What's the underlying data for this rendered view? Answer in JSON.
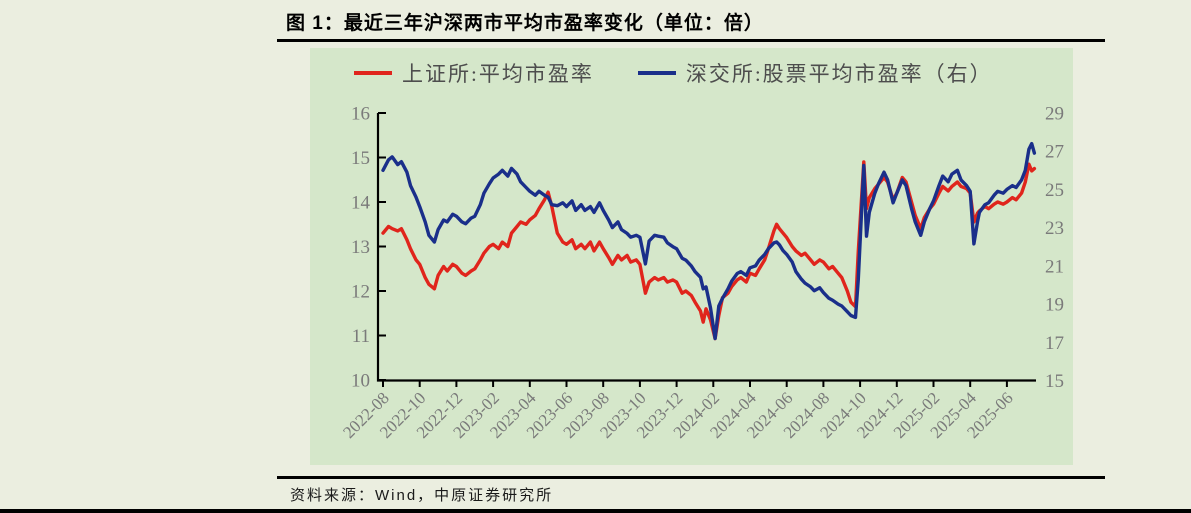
{
  "header": {
    "title": "图 1：最近三年沪深两市平均市盈率变化（单位：倍）"
  },
  "footer": {
    "source": "资料来源：Wind，中原证券研究所"
  },
  "colors": {
    "page_bg": "#ebeee0",
    "panel_bg": "#d5e7ca",
    "sse_red": "#e0251c",
    "szse_blue": "#1a2f8a",
    "axis": "#000000",
    "tick_text": "#7a7a7a",
    "legend_text": "#4d4d4d"
  },
  "chart_data": {
    "type": "line",
    "title": "最近三年沪深两市平均市盈率变化（单位：倍）",
    "x_unit": "months since 2022-08",
    "x_tick_step_months": 2,
    "xlim_months": [
      0,
      35.5
    ],
    "x_tick_labels": [
      "2022-08",
      "2022-10",
      "2022-12",
      "2023-02",
      "2023-04",
      "2023-06",
      "2023-08",
      "2023-10",
      "2023-12",
      "2024-02",
      "2024-04",
      "2024-06",
      "2024-08",
      "2024-10",
      "2024-12",
      "2025-02",
      "2025-04",
      "2025-06"
    ],
    "left_axis": {
      "ticks": [
        16,
        15,
        14,
        13,
        12,
        11,
        10
      ],
      "range": [
        10,
        16
      ]
    },
    "right_axis": {
      "ticks": [
        29,
        27,
        25,
        23,
        21,
        19,
        17,
        15
      ],
      "range": [
        15,
        29
      ]
    },
    "grid": false,
    "legend_position": "top",
    "series": [
      {
        "name": "上证所:平均市盈率",
        "axis": "left",
        "color": "#e0251c",
        "points": [
          [
            0,
            13.3
          ],
          [
            0.3,
            13.45
          ],
          [
            0.5,
            13.4
          ],
          [
            0.8,
            13.35
          ],
          [
            1,
            13.4
          ],
          [
            1.3,
            13.15
          ],
          [
            1.5,
            12.95
          ],
          [
            1.8,
            12.7
          ],
          [
            2,
            12.6
          ],
          [
            2.3,
            12.3
          ],
          [
            2.5,
            12.15
          ],
          [
            2.8,
            12.05
          ],
          [
            3,
            12.35
          ],
          [
            3.3,
            12.55
          ],
          [
            3.5,
            12.45
          ],
          [
            3.8,
            12.6
          ],
          [
            4,
            12.55
          ],
          [
            4.3,
            12.4
          ],
          [
            4.5,
            12.35
          ],
          [
            4.8,
            12.45
          ],
          [
            5,
            12.5
          ],
          [
            5.3,
            12.7
          ],
          [
            5.5,
            12.85
          ],
          [
            5.8,
            13
          ],
          [
            6,
            13.05
          ],
          [
            6.3,
            12.95
          ],
          [
            6.5,
            13.1
          ],
          [
            6.8,
            13
          ],
          [
            7,
            13.3
          ],
          [
            7.3,
            13.45
          ],
          [
            7.5,
            13.55
          ],
          [
            7.8,
            13.5
          ],
          [
            8,
            13.6
          ],
          [
            8.3,
            13.7
          ],
          [
            8.5,
            13.85
          ],
          [
            8.8,
            14.05
          ],
          [
            9,
            14.22
          ],
          [
            9.2,
            13.9
          ],
          [
            9.5,
            13.3
          ],
          [
            9.8,
            13.1
          ],
          [
            10,
            13.05
          ],
          [
            10.3,
            13.15
          ],
          [
            10.5,
            12.95
          ],
          [
            10.8,
            13.05
          ],
          [
            11,
            12.95
          ],
          [
            11.3,
            13.1
          ],
          [
            11.5,
            12.9
          ],
          [
            11.8,
            13.1
          ],
          [
            12,
            12.95
          ],
          [
            12.3,
            12.75
          ],
          [
            12.5,
            12.6
          ],
          [
            12.8,
            12.8
          ],
          [
            13,
            12.7
          ],
          [
            13.3,
            12.8
          ],
          [
            13.5,
            12.65
          ],
          [
            13.8,
            12.7
          ],
          [
            14,
            12.6
          ],
          [
            14.3,
            11.95
          ],
          [
            14.5,
            12.2
          ],
          [
            14.8,
            12.3
          ],
          [
            15,
            12.25
          ],
          [
            15.3,
            12.3
          ],
          [
            15.5,
            12.2
          ],
          [
            15.8,
            12.25
          ],
          [
            16,
            12.2
          ],
          [
            16.3,
            11.95
          ],
          [
            16.5,
            12
          ],
          [
            16.8,
            11.9
          ],
          [
            17,
            11.75
          ],
          [
            17.3,
            11.55
          ],
          [
            17.45,
            11.3
          ],
          [
            17.6,
            11.6
          ],
          [
            17.85,
            11.35
          ],
          [
            18.1,
            10.93
          ],
          [
            18.3,
            11.45
          ],
          [
            18.5,
            11.85
          ],
          [
            18.8,
            11.95
          ],
          [
            19,
            12.1
          ],
          [
            19.3,
            12.25
          ],
          [
            19.5,
            12.3
          ],
          [
            19.8,
            12.2
          ],
          [
            20,
            12.4
          ],
          [
            20.3,
            12.35
          ],
          [
            20.5,
            12.5
          ],
          [
            20.8,
            12.7
          ],
          [
            21,
            12.95
          ],
          [
            21.3,
            13.35
          ],
          [
            21.45,
            13.5
          ],
          [
            21.6,
            13.4
          ],
          [
            21.8,
            13.3
          ],
          [
            22,
            13.2
          ],
          [
            22.3,
            13
          ],
          [
            22.5,
            12.9
          ],
          [
            22.8,
            12.8
          ],
          [
            23,
            12.85
          ],
          [
            23.3,
            12.7
          ],
          [
            23.5,
            12.6
          ],
          [
            23.8,
            12.7
          ],
          [
            24,
            12.65
          ],
          [
            24.3,
            12.5
          ],
          [
            24.5,
            12.55
          ],
          [
            24.8,
            12.4
          ],
          [
            25,
            12.3
          ],
          [
            25.3,
            12
          ],
          [
            25.5,
            11.75
          ],
          [
            25.75,
            11.65
          ],
          [
            25.9,
            12.9
          ],
          [
            26.2,
            14.9
          ],
          [
            26.35,
            13.85
          ],
          [
            26.5,
            14.1
          ],
          [
            26.8,
            14.3
          ],
          [
            27,
            14.4
          ],
          [
            27.3,
            14.55
          ],
          [
            27.5,
            14.45
          ],
          [
            27.8,
            14.05
          ],
          [
            28,
            14.2
          ],
          [
            28.3,
            14.55
          ],
          [
            28.5,
            14.45
          ],
          [
            28.8,
            14
          ],
          [
            29,
            13.7
          ],
          [
            29.3,
            13.4
          ],
          [
            29.5,
            13.65
          ],
          [
            29.8,
            13.85
          ],
          [
            30,
            13.95
          ],
          [
            30.3,
            14.2
          ],
          [
            30.5,
            14.35
          ],
          [
            30.8,
            14.25
          ],
          [
            31,
            14.35
          ],
          [
            31.3,
            14.45
          ],
          [
            31.5,
            14.35
          ],
          [
            31.8,
            14.3
          ],
          [
            32,
            14.2
          ],
          [
            32.2,
            13.55
          ],
          [
            32.4,
            13.75
          ],
          [
            32.5,
            13.8
          ],
          [
            32.8,
            13.9
          ],
          [
            33,
            13.85
          ],
          [
            33.3,
            13.95
          ],
          [
            33.5,
            14
          ],
          [
            33.8,
            13.95
          ],
          [
            34,
            14
          ],
          [
            34.3,
            14.1
          ],
          [
            34.5,
            14.05
          ],
          [
            34.8,
            14.2
          ],
          [
            35,
            14.45
          ],
          [
            35.2,
            14.85
          ],
          [
            35.35,
            14.7
          ],
          [
            35.5,
            14.75
          ]
        ]
      },
      {
        "name": "深交所:股票平均市盈率（右）",
        "axis": "right",
        "color": "#1a2f8a",
        "points": [
          [
            0,
            26
          ],
          [
            0.3,
            26.55
          ],
          [
            0.5,
            26.7
          ],
          [
            0.8,
            26.3
          ],
          [
            1,
            26.45
          ],
          [
            1.3,
            25.9
          ],
          [
            1.5,
            25.2
          ],
          [
            1.8,
            24.6
          ],
          [
            2,
            24.1
          ],
          [
            2.3,
            23.3
          ],
          [
            2.5,
            22.6
          ],
          [
            2.8,
            22.25
          ],
          [
            3,
            22.9
          ],
          [
            3.3,
            23.4
          ],
          [
            3.5,
            23.3
          ],
          [
            3.8,
            23.7
          ],
          [
            4,
            23.6
          ],
          [
            4.3,
            23.3
          ],
          [
            4.5,
            23.2
          ],
          [
            4.8,
            23.5
          ],
          [
            5,
            23.6
          ],
          [
            5.3,
            24.2
          ],
          [
            5.5,
            24.8
          ],
          [
            5.8,
            25.3
          ],
          [
            6,
            25.6
          ],
          [
            6.3,
            25.8
          ],
          [
            6.5,
            26
          ],
          [
            6.8,
            25.7
          ],
          [
            7,
            26.1
          ],
          [
            7.3,
            25.8
          ],
          [
            7.5,
            25.4
          ],
          [
            7.8,
            25.1
          ],
          [
            8,
            24.9
          ],
          [
            8.3,
            24.7
          ],
          [
            8.5,
            24.9
          ],
          [
            8.8,
            24.7
          ],
          [
            9,
            24.6
          ],
          [
            9.2,
            24.2
          ],
          [
            9.5,
            24.15
          ],
          [
            9.8,
            24.3
          ],
          [
            10,
            24.1
          ],
          [
            10.3,
            24.4
          ],
          [
            10.5,
            23.9
          ],
          [
            10.8,
            24.2
          ],
          [
            11,
            23.9
          ],
          [
            11.3,
            24.1
          ],
          [
            11.5,
            23.8
          ],
          [
            11.8,
            24.3
          ],
          [
            12,
            23.9
          ],
          [
            12.3,
            23.4
          ],
          [
            12.5,
            23
          ],
          [
            12.8,
            23.3
          ],
          [
            13,
            22.9
          ],
          [
            13.3,
            22.7
          ],
          [
            13.5,
            22.5
          ],
          [
            13.8,
            22.6
          ],
          [
            14,
            22.5
          ],
          [
            14.3,
            21.1
          ],
          [
            14.5,
            22.3
          ],
          [
            14.8,
            22.6
          ],
          [
            15,
            22.55
          ],
          [
            15.3,
            22.5
          ],
          [
            15.5,
            22.2
          ],
          [
            15.8,
            22
          ],
          [
            16,
            21.9
          ],
          [
            16.3,
            21.4
          ],
          [
            16.5,
            21.3
          ],
          [
            16.8,
            21
          ],
          [
            17,
            20.7
          ],
          [
            17.3,
            20.4
          ],
          [
            17.45,
            19.8
          ],
          [
            17.6,
            19.9
          ],
          [
            17.85,
            18.8
          ],
          [
            18.1,
            17.2
          ],
          [
            18.3,
            18.9
          ],
          [
            18.5,
            19.3
          ],
          [
            18.8,
            19.8
          ],
          [
            19,
            20.2
          ],
          [
            19.3,
            20.6
          ],
          [
            19.5,
            20.7
          ],
          [
            19.8,
            20.5
          ],
          [
            20,
            20.9
          ],
          [
            20.3,
            21
          ],
          [
            20.5,
            21.3
          ],
          [
            20.8,
            21.6
          ],
          [
            21,
            21.9
          ],
          [
            21.3,
            22.2
          ],
          [
            21.45,
            22.25
          ],
          [
            21.6,
            22.1
          ],
          [
            21.8,
            21.8
          ],
          [
            22,
            21.6
          ],
          [
            22.3,
            21.2
          ],
          [
            22.5,
            20.7
          ],
          [
            22.8,
            20.3
          ],
          [
            23,
            20.1
          ],
          [
            23.3,
            19.9
          ],
          [
            23.5,
            19.7
          ],
          [
            23.8,
            19.85
          ],
          [
            24,
            19.6
          ],
          [
            24.3,
            19.3
          ],
          [
            24.5,
            19.2
          ],
          [
            24.8,
            19
          ],
          [
            25,
            18.9
          ],
          [
            25.3,
            18.6
          ],
          [
            25.5,
            18.4
          ],
          [
            25.75,
            18.3
          ],
          [
            25.9,
            20.3
          ],
          [
            26.2,
            26.25
          ],
          [
            26.35,
            22.55
          ],
          [
            26.5,
            23.8
          ],
          [
            26.8,
            24.8
          ],
          [
            27,
            25.3
          ],
          [
            27.3,
            25.9
          ],
          [
            27.5,
            25.5
          ],
          [
            27.8,
            24.3
          ],
          [
            28,
            24.8
          ],
          [
            28.3,
            25.5
          ],
          [
            28.5,
            25.2
          ],
          [
            28.8,
            24
          ],
          [
            29,
            23.3
          ],
          [
            29.3,
            22.6
          ],
          [
            29.5,
            23.3
          ],
          [
            29.8,
            24
          ],
          [
            30,
            24.4
          ],
          [
            30.3,
            25.2
          ],
          [
            30.5,
            25.7
          ],
          [
            30.8,
            25.4
          ],
          [
            31,
            25.8
          ],
          [
            31.3,
            26
          ],
          [
            31.5,
            25.5
          ],
          [
            31.8,
            25.2
          ],
          [
            32,
            24.9
          ],
          [
            32.2,
            22.15
          ],
          [
            32.4,
            23.3
          ],
          [
            32.5,
            23.8
          ],
          [
            32.8,
            24.2
          ],
          [
            33,
            24.3
          ],
          [
            33.3,
            24.7
          ],
          [
            33.5,
            24.9
          ],
          [
            33.8,
            24.8
          ],
          [
            34,
            25
          ],
          [
            34.3,
            25.2
          ],
          [
            34.5,
            25.1
          ],
          [
            34.8,
            25.5
          ],
          [
            35,
            26
          ],
          [
            35.2,
            27.1
          ],
          [
            35.35,
            27.4
          ],
          [
            35.5,
            26.9
          ]
        ]
      }
    ]
  }
}
